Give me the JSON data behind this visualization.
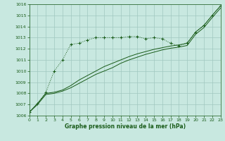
{
  "background_color": "#c8e8e0",
  "grid_color": "#a0c8c0",
  "line_color": "#1a5c1a",
  "xlabel": "Graphe pression niveau de la mer (hPa)",
  "xlim": [
    0,
    23
  ],
  "ylim": [
    1006,
    1016
  ],
  "yticks": [
    1006,
    1007,
    1008,
    1009,
    1010,
    1011,
    1012,
    1013,
    1014,
    1015,
    1016
  ],
  "xticks": [
    0,
    1,
    2,
    3,
    4,
    5,
    6,
    7,
    8,
    9,
    10,
    11,
    12,
    13,
    14,
    15,
    16,
    17,
    18,
    19,
    20,
    21,
    22,
    23
  ],
  "s1_x": [
    0,
    1,
    2,
    3,
    4,
    5,
    6,
    7,
    8,
    9,
    10,
    11,
    12,
    13,
    14,
    15,
    16,
    17,
    18,
    19,
    20,
    21,
    22,
    23
  ],
  "s1_y": [
    1006.3,
    1007.1,
    1008.1,
    1010.0,
    1011.0,
    1012.4,
    1012.5,
    1012.8,
    1013.0,
    1013.0,
    1013.0,
    1013.0,
    1013.1,
    1013.1,
    1012.9,
    1013.0,
    1012.9,
    1012.5,
    1012.25,
    1012.55,
    1013.5,
    1014.1,
    1015.0,
    1015.85
  ],
  "s2_x": [
    0,
    1,
    2,
    3,
    4,
    5,
    6,
    7,
    8,
    9,
    10,
    11,
    12,
    13,
    14,
    15,
    16,
    17,
    18,
    19,
    20,
    21,
    22,
    23
  ],
  "s2_y": [
    1006.3,
    1007.1,
    1008.0,
    1008.1,
    1008.3,
    1008.7,
    1009.2,
    1009.6,
    1010.0,
    1010.4,
    1010.7,
    1011.0,
    1011.3,
    1011.55,
    1011.75,
    1011.95,
    1012.1,
    1012.25,
    1012.35,
    1012.5,
    1013.5,
    1014.1,
    1015.0,
    1015.85
  ],
  "s3_x": [
    0,
    1,
    2,
    3,
    4,
    5,
    6,
    7,
    8,
    9,
    10,
    11,
    12,
    13,
    14,
    15,
    16,
    17,
    18,
    19,
    20,
    21,
    22,
    23
  ],
  "s3_y": [
    1006.3,
    1007.0,
    1007.9,
    1008.0,
    1008.2,
    1008.5,
    1008.9,
    1009.3,
    1009.7,
    1010.0,
    1010.3,
    1010.7,
    1011.0,
    1011.25,
    1011.5,
    1011.7,
    1011.9,
    1012.05,
    1012.15,
    1012.3,
    1013.3,
    1013.9,
    1014.8,
    1015.65
  ]
}
